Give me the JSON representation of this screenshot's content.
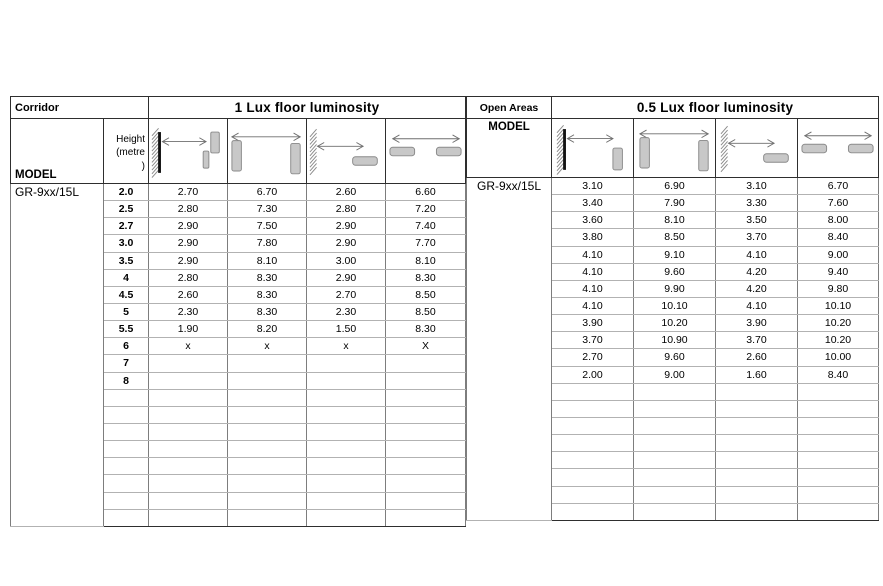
{
  "corridor": {
    "section_label": "Corridor",
    "lux_header": "1 Lux floor luminosity",
    "model_header": "MODEL",
    "height_header": "Height\n(metre\n)",
    "model_value": "GR-9xx/15L",
    "icons": [
      "wall-to-corner-sensor-distance-icon",
      "wall-sensor-to-wall-sensor-distance-icon",
      "wall-to-ceiling-sensor-distance-icon",
      "ceiling-sensor-to-ceiling-sensor-distance-icon"
    ],
    "rows": [
      {
        "height": "2.0",
        "values": [
          "2.70",
          "6.70",
          "2.60",
          "6.60"
        ]
      },
      {
        "height": "2.5",
        "values": [
          "2.80",
          "7.30",
          "2.80",
          "7.20"
        ]
      },
      {
        "height": "2.7",
        "values": [
          "2.90",
          "7.50",
          "2.90",
          "7.40"
        ]
      },
      {
        "height": "3.0",
        "values": [
          "2.90",
          "7.80",
          "2.90",
          "7.70"
        ]
      },
      {
        "height": "3.5",
        "values": [
          "2.90",
          "8.10",
          "3.00",
          "8.10"
        ]
      },
      {
        "height": "4",
        "values": [
          "2.80",
          "8.30",
          "2.90",
          "8.30"
        ]
      },
      {
        "height": "4.5",
        "values": [
          "2.60",
          "8.30",
          "2.70",
          "8.50"
        ]
      },
      {
        "height": "5",
        "values": [
          "2.30",
          "8.30",
          "2.30",
          "8.50"
        ]
      },
      {
        "height": "5.5",
        "values": [
          "1.90",
          "8.20",
          "1.50",
          "8.30"
        ]
      },
      {
        "height": "6",
        "values": [
          "x",
          "x",
          "x",
          "X"
        ]
      },
      {
        "height": "7",
        "values": [
          "",
          "",
          "",
          ""
        ]
      },
      {
        "height": "8",
        "values": [
          "",
          "",
          "",
          ""
        ]
      }
    ],
    "empty_row_count": 8
  },
  "open_areas": {
    "section_label": "Open Areas",
    "lux_header": "0.5 Lux floor luminosity",
    "model_header": "MODEL",
    "model_value": "GR-9xx/15L",
    "icons": [
      "wall-to-wall-sensor-distance-icon",
      "wall-sensor-to-wall-sensor-distance-icon",
      "wall-to-ceiling-sensor-distance-icon",
      "ceiling-sensor-to-ceiling-sensor-distance-icon"
    ],
    "rows": [
      {
        "values": [
          "3.10",
          "6.90",
          "3.10",
          "6.70"
        ]
      },
      {
        "values": [
          "3.40",
          "7.90",
          "3.30",
          "7.60"
        ]
      },
      {
        "values": [
          "3.60",
          "8.10",
          "3.50",
          "8.00"
        ]
      },
      {
        "values": [
          "3.80",
          "8.50",
          "3.70",
          "8.40"
        ]
      },
      {
        "values": [
          "4.10",
          "9.10",
          "4.10",
          "9.00"
        ]
      },
      {
        "values": [
          "4.10",
          "9.60",
          "4.20",
          "9.40"
        ]
      },
      {
        "values": [
          "4.10",
          "9.90",
          "4.20",
          "9.80"
        ]
      },
      {
        "values": [
          "4.10",
          "10.10",
          "4.10",
          "10.10"
        ]
      },
      {
        "values": [
          "3.90",
          "10.20",
          "3.90",
          "10.20"
        ]
      },
      {
        "values": [
          "3.70",
          "10.90",
          "3.70",
          "10.20"
        ]
      },
      {
        "values": [
          "2.70",
          "9.60",
          "2.60",
          "10.00"
        ]
      },
      {
        "values": [
          "2.00",
          "9.00",
          "1.60",
          "8.40"
        ]
      }
    ],
    "empty_row_count": 8
  },
  "colors": {
    "grid_major": "#2e2e2e",
    "grid_minor": "#b2b2b2",
    "grid_vertical": "#7d7d7d",
    "sensor_fill": "#c8c8c8",
    "sensor_stroke": "#8a8a8a",
    "arrow": "#6e6e6e",
    "wall": "#111111",
    "text": "#000000"
  }
}
